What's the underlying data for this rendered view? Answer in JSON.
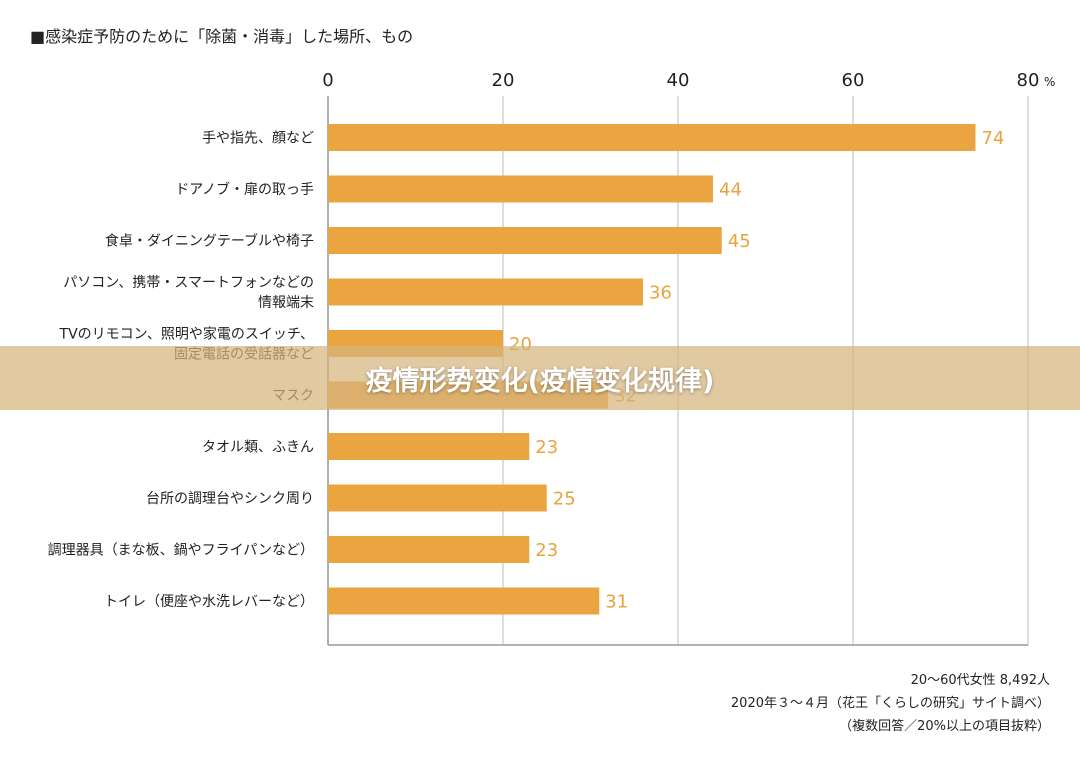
{
  "overlay": {
    "title": "疫情形势变化(疫情变化规律)"
  },
  "chart_data": {
    "type": "bar",
    "orientation": "horizontal",
    "title": "■感染症予防のために「除菌・消毒」した場所、もの",
    "xlim": [
      0,
      80
    ],
    "ticks": [
      0,
      20,
      40,
      60,
      80
    ],
    "tick_labels": [
      "0",
      "20",
      "40",
      "60",
      "80"
    ],
    "unit_suffix": "%",
    "categories": [
      [
        "手や指先、顔など"
      ],
      [
        "ドアノブ・扉の取っ手"
      ],
      [
        "食卓・ダイニングテーブルや椅子"
      ],
      [
        "パソコン、携帯・スマートフォンなどの",
        "情報端末"
      ],
      [
        "TVのリモコン、照明や家電のスイッチ、",
        "固定電話の受話器など"
      ],
      [
        "マスク"
      ],
      [
        "タオル類、ふきん"
      ],
      [
        "台所の調理台やシンク周り"
      ],
      [
        "調理器具（まな板、鍋やフライパンなど）"
      ],
      [
        "トイレ（便座や水洗レバーなど）"
      ]
    ],
    "values": [
      74,
      44,
      45,
      36,
      20,
      32,
      23,
      25,
      23,
      31
    ],
    "value_labels": [
      "74",
      "44",
      "45",
      "36",
      "20",
      "32",
      "23",
      "25",
      "23",
      "31"
    ],
    "bar_color": "#EBA540",
    "label_color": "#E8A33D",
    "grid": true,
    "notes": [
      "20〜60代女性 8,492人",
      "2020年３〜４月（花王「くらしの研究」サイト調べ）",
      "（複数回答／20%以上の項目抜粋）"
    ]
  }
}
